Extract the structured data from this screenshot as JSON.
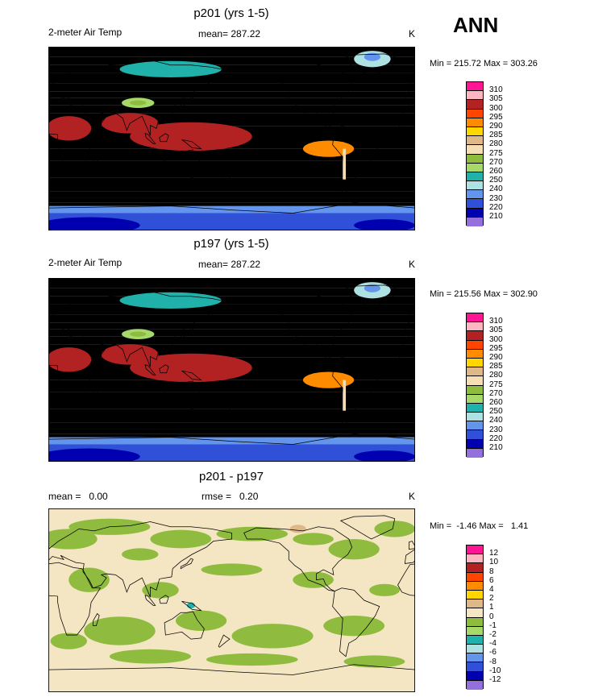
{
  "season": "ANN",
  "panels": [
    {
      "title": "p201 (yrs 1-5)",
      "left_label": "2-meter Air Temp",
      "center_label": "mean= 287.22",
      "units": "K",
      "minmax": "Min = 215.72 Max = 303.26",
      "scheme": "abs"
    },
    {
      "title": "p197 (yrs 1-5)",
      "left_label": "2-meter Air Temp",
      "center_label": "mean= 287.22",
      "units": "K",
      "minmax": "Min = 215.56 Max = 302.90",
      "scheme": "abs"
    },
    {
      "title": "p201 - p197",
      "left_label": "mean =   0.00",
      "center_label": "rmse =   0.20",
      "units": "K",
      "minmax": "Min =  -1.46 Max =   1.41",
      "scheme": "diff"
    }
  ],
  "legends": {
    "abs": {
      "levels": [
        "310",
        "305",
        "300",
        "295",
        "290",
        "285",
        "280",
        "275",
        "270",
        "260",
        "250",
        "240",
        "230",
        "220",
        "210"
      ],
      "colors": [
        "#ff1493",
        "#ffb6c1",
        "#b22222",
        "#ff4500",
        "#ff8c00",
        "#ffd700",
        "#deb887",
        "#f5deb3",
        "#8fbc3f",
        "#a6d96a",
        "#20b2aa",
        "#aee2e2",
        "#6495ed",
        "#3050d8",
        "#0000b0",
        "#9370db"
      ]
    },
    "diff": {
      "levels": [
        "12",
        "10",
        "8",
        "6",
        "4",
        "2",
        "1",
        "0",
        "-1",
        "-2",
        "-4",
        "-6",
        "-8",
        "-10",
        "-12"
      ],
      "colors": [
        "#ff1493",
        "#ffb6c1",
        "#b22222",
        "#ff4500",
        "#ff8c00",
        "#ffd700",
        "#deb887",
        "#f5e6c3",
        "#8fbc3f",
        "#a6d96a",
        "#20b2aa",
        "#aee2e2",
        "#6495ed",
        "#3050d8",
        "#0000b0",
        "#9370db"
      ]
    }
  }
}
